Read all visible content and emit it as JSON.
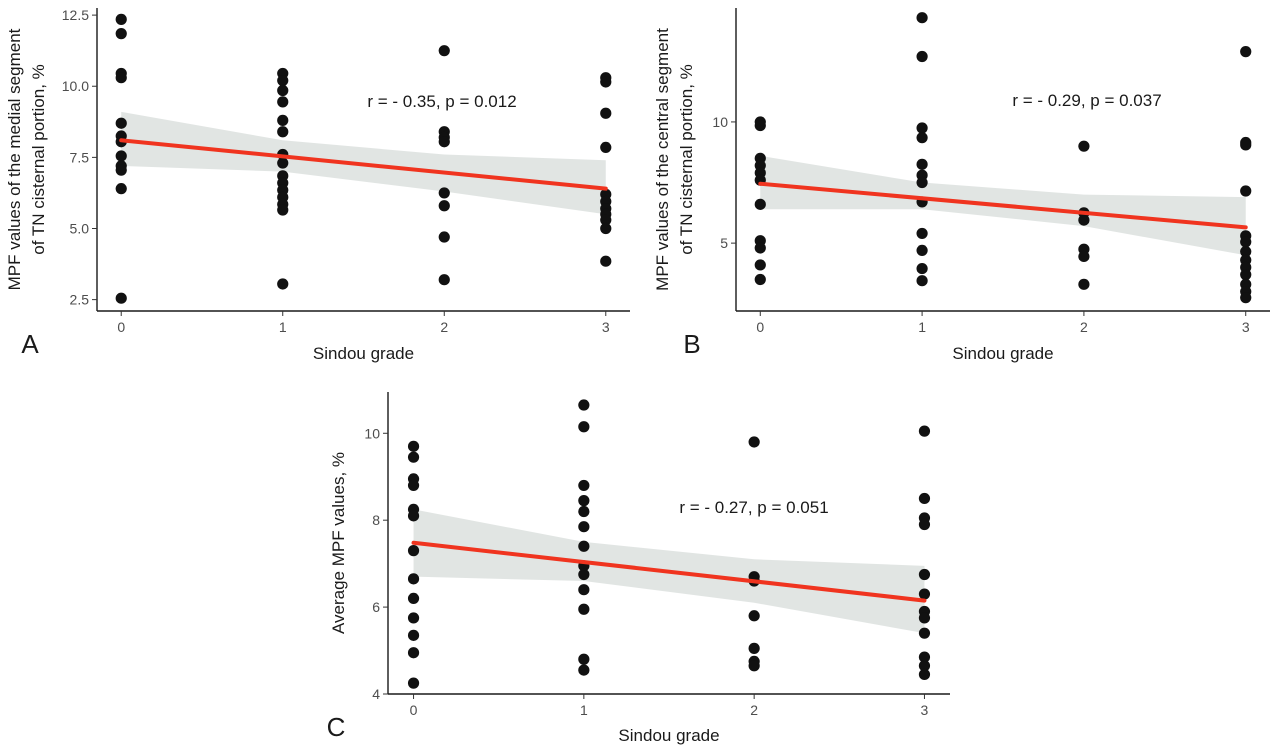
{
  "colors": {
    "points": "#111111",
    "fit_line": "#f0341f",
    "confidence_band": "#d9dedc",
    "axis": "#1a1a1a"
  },
  "chart_data": [
    {
      "type": "scatter",
      "panel": "A",
      "xlabel": "Sindou grade",
      "ylabel": [
        "MPF values of the medial segment",
        "of TN cisternal portion, %"
      ],
      "annotation": "r = - 0.35, p = 0.012",
      "xlim": [
        -0.15,
        3.15
      ],
      "ylim": [
        2.1,
        12.75
      ],
      "x_ticks": [
        0,
        1,
        2,
        3
      ],
      "y_ticks": [
        2.5,
        5.0,
        7.5,
        10.0,
        12.5
      ],
      "y_tick_labels": [
        "2.5",
        "5.0",
        "7.5",
        "10.0",
        "12.5"
      ],
      "grid": false,
      "fit": {
        "x": [
          0,
          3
        ],
        "y": [
          8.1,
          6.4
        ]
      },
      "band": {
        "x": [
          0,
          1,
          2,
          3
        ],
        "upper": [
          9.1,
          8.1,
          7.6,
          7.4
        ],
        "lower": [
          7.2,
          7.0,
          6.3,
          5.5
        ]
      },
      "points": [
        [
          0,
          12.35
        ],
        [
          0,
          11.85
        ],
        [
          0,
          10.45
        ],
        [
          0,
          10.3
        ],
        [
          0,
          8.7
        ],
        [
          0,
          8.25
        ],
        [
          0,
          8.05
        ],
        [
          0,
          7.55
        ],
        [
          0,
          7.2
        ],
        [
          0,
          7.05
        ],
        [
          0,
          6.4
        ],
        [
          0,
          2.55
        ],
        [
          1,
          10.45
        ],
        [
          1,
          10.2
        ],
        [
          1,
          9.85
        ],
        [
          1,
          9.45
        ],
        [
          1,
          8.8
        ],
        [
          1,
          8.4
        ],
        [
          1,
          7.6
        ],
        [
          1,
          7.3
        ],
        [
          1,
          6.85
        ],
        [
          1,
          6.6
        ],
        [
          1,
          6.35
        ],
        [
          1,
          6.1
        ],
        [
          1,
          5.85
        ],
        [
          1,
          5.65
        ],
        [
          1,
          3.05
        ],
        [
          2,
          11.25
        ],
        [
          2,
          8.4
        ],
        [
          2,
          8.2
        ],
        [
          2,
          8.05
        ],
        [
          2,
          6.25
        ],
        [
          2,
          5.8
        ],
        [
          2,
          4.7
        ],
        [
          2,
          3.2
        ],
        [
          3,
          10.3
        ],
        [
          3,
          10.15
        ],
        [
          3,
          9.05
        ],
        [
          3,
          7.85
        ],
        [
          3,
          6.2
        ],
        [
          3,
          5.95
        ],
        [
          3,
          5.7
        ],
        [
          3,
          5.5
        ],
        [
          3,
          5.3
        ],
        [
          3,
          5.0
        ],
        [
          3,
          3.85
        ]
      ]
    },
    {
      "type": "scatter",
      "panel": "B",
      "xlabel": "Sindou grade",
      "ylabel": [
        "MPF values of the central segment",
        "of TN cisternal portion, %"
      ],
      "annotation": "r = - 0.29, p = 0.037",
      "xlim": [
        -0.15,
        3.15
      ],
      "ylim": [
        2.2,
        14.7
      ],
      "x_ticks": [
        0,
        1,
        2,
        3
      ],
      "y_ticks": [
        5,
        10
      ],
      "y_tick_labels": [
        "5",
        "10"
      ],
      "grid": false,
      "fit": {
        "x": [
          0,
          3
        ],
        "y": [
          7.45,
          5.65
        ]
      },
      "band": {
        "x": [
          0,
          1,
          2,
          3
        ],
        "upper": [
          8.6,
          7.5,
          7.0,
          6.9
        ],
        "lower": [
          6.4,
          6.4,
          5.7,
          4.5
        ]
      },
      "points": [
        [
          0,
          10.0
        ],
        [
          0,
          9.85
        ],
        [
          0,
          8.5
        ],
        [
          0,
          8.2
        ],
        [
          0,
          7.9
        ],
        [
          0,
          7.6
        ],
        [
          0,
          6.6
        ],
        [
          0,
          5.1
        ],
        [
          0,
          4.8
        ],
        [
          0,
          4.1
        ],
        [
          0,
          3.5
        ],
        [
          1,
          14.3
        ],
        [
          1,
          12.7
        ],
        [
          1,
          9.75
        ],
        [
          1,
          9.35
        ],
        [
          1,
          8.25
        ],
        [
          1,
          7.8
        ],
        [
          1,
          7.5
        ],
        [
          1,
          6.7
        ],
        [
          1,
          5.4
        ],
        [
          1,
          4.7
        ],
        [
          1,
          3.95
        ],
        [
          1,
          3.45
        ],
        [
          2,
          9.0
        ],
        [
          2,
          6.25
        ],
        [
          2,
          5.95
        ],
        [
          2,
          4.75
        ],
        [
          2,
          4.45
        ],
        [
          2,
          3.3
        ],
        [
          3,
          12.9
        ],
        [
          3,
          9.15
        ],
        [
          3,
          9.05
        ],
        [
          3,
          7.15
        ],
        [
          3,
          5.3
        ],
        [
          3,
          5.05
        ],
        [
          3,
          4.65
        ],
        [
          3,
          4.3
        ],
        [
          3,
          4.0
        ],
        [
          3,
          3.7
        ],
        [
          3,
          3.3
        ],
        [
          3,
          3.0
        ],
        [
          3,
          2.75
        ]
      ]
    },
    {
      "type": "scatter",
      "panel": "C",
      "xlabel": "Sindou grade",
      "ylabel": [
        "Average MPF values, %"
      ],
      "annotation": "r = - 0.27, p = 0.051",
      "xlim": [
        -0.15,
        3.15
      ],
      "ylim": [
        4.0,
        10.95
      ],
      "x_ticks": [
        0,
        1,
        2,
        3
      ],
      "y_ticks": [
        4,
        6,
        8,
        10
      ],
      "y_tick_labels": [
        "4",
        "6",
        "8",
        "10"
      ],
      "grid": false,
      "fit": {
        "x": [
          0,
          3
        ],
        "y": [
          7.48,
          6.15
        ]
      },
      "band": {
        "x": [
          0,
          1,
          2,
          3
        ],
        "upper": [
          8.25,
          7.5,
          7.1,
          6.95
        ],
        "lower": [
          6.7,
          6.6,
          6.1,
          5.4
        ]
      },
      "points": [
        [
          0,
          9.7
        ],
        [
          0,
          9.45
        ],
        [
          0,
          8.95
        ],
        [
          0,
          8.8
        ],
        [
          0,
          8.25
        ],
        [
          0,
          8.1
        ],
        [
          0,
          7.3
        ],
        [
          0,
          6.65
        ],
        [
          0,
          6.2
        ],
        [
          0,
          5.75
        ],
        [
          0,
          5.35
        ],
        [
          0,
          4.95
        ],
        [
          0,
          4.25
        ],
        [
          1,
          10.65
        ],
        [
          1,
          10.15
        ],
        [
          1,
          8.8
        ],
        [
          1,
          8.45
        ],
        [
          1,
          8.2
        ],
        [
          1,
          7.85
        ],
        [
          1,
          7.4
        ],
        [
          1,
          6.95
        ],
        [
          1,
          6.75
        ],
        [
          1,
          6.4
        ],
        [
          1,
          5.95
        ],
        [
          1,
          4.8
        ],
        [
          1,
          4.55
        ],
        [
          2,
          9.8
        ],
        [
          2,
          6.7
        ],
        [
          2,
          6.6
        ],
        [
          2,
          5.8
        ],
        [
          2,
          5.05
        ],
        [
          2,
          4.75
        ],
        [
          2,
          4.65
        ],
        [
          3,
          10.05
        ],
        [
          3,
          8.5
        ],
        [
          3,
          8.05
        ],
        [
          3,
          7.9
        ],
        [
          3,
          6.75
        ],
        [
          3,
          6.3
        ],
        [
          3,
          5.9
        ],
        [
          3,
          5.75
        ],
        [
          3,
          5.4
        ],
        [
          3,
          4.85
        ],
        [
          3,
          4.65
        ],
        [
          3,
          4.45
        ]
      ]
    }
  ]
}
